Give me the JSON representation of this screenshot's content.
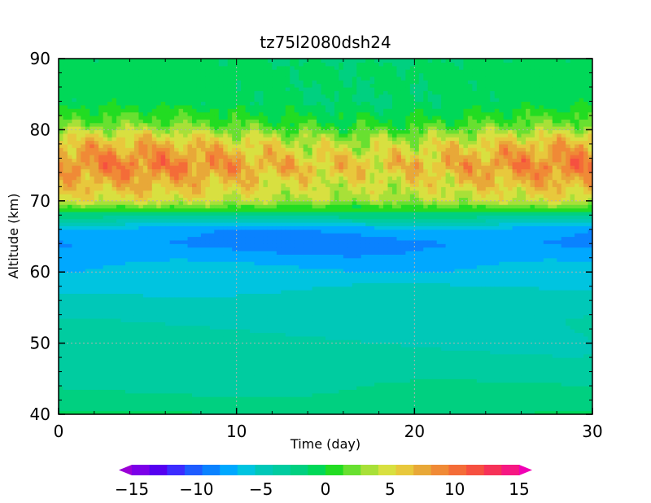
{
  "chart_data": {
    "type": "heatmap",
    "title": "tz75l2080dsh24",
    "xlabel": "Time (day)",
    "ylabel": "Altitude (km)",
    "xlim": [
      0,
      30
    ],
    "ylim": [
      40,
      90
    ],
    "x_ticks": [
      "0",
      "10",
      "20",
      "30"
    ],
    "y_ticks": [
      "40",
      "50",
      "60",
      "70",
      "80",
      "90"
    ],
    "grid": "dotted at major ticks",
    "colorbar": {
      "placement": "bottom",
      "range": [
        -15,
        15
      ],
      "step": 1.5,
      "ticks": [
        "−15",
        "−10",
        "−5",
        "0",
        "5",
        "10",
        "15"
      ],
      "colors": [
        "#9a00d6",
        "#7c00e8",
        "#5500f0",
        "#3c2cff",
        "#1e5cff",
        "#0a82ff",
        "#00a8ff",
        "#00c4e0",
        "#00c8b8",
        "#00cca0",
        "#00d080",
        "#00d858",
        "#22dc22",
        "#68e030",
        "#a8e038",
        "#d8e040",
        "#e8c83c",
        "#e8a838",
        "#f08a36",
        "#f46c38",
        "#f65040",
        "#f63258",
        "#f61882",
        "#f000b4"
      ]
    },
    "profile_description_km_value": [
      {
        "altitude": 40,
        "value": 0
      },
      {
        "altitude": 42,
        "value": -1
      },
      {
        "altitude": 47,
        "value": -2.5
      },
      {
        "altitude": 55,
        "value": -3.5
      },
      {
        "altitude": 60,
        "value": -5.5
      },
      {
        "altitude": 64,
        "value": -8
      },
      {
        "altitude": 66,
        "value": -7
      },
      {
        "altitude": 68,
        "value": -1
      },
      {
        "altitude": 70,
        "value": 6
      },
      {
        "altitude": 75,
        "value": 10.5
      },
      {
        "altitude": 78,
        "value": 8
      },
      {
        "altitude": 81,
        "value": 3
      },
      {
        "altitude": 84,
        "value": 0.5
      },
      {
        "altitude": 90,
        "value": 0
      }
    ]
  }
}
